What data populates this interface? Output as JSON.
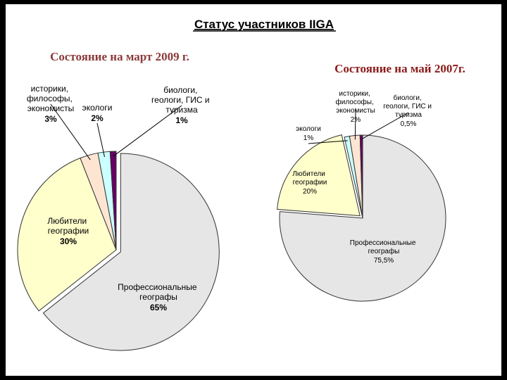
{
  "title": "Статус участников IIGA",
  "chart_data": [
    {
      "type": "pie",
      "title": "Состояние на март 2009 г.",
      "categories": [
        "Профессиональные географы",
        "Любители географии",
        "историки, философы, экономисты",
        "экологи",
        "биологи, геологи, ГИС и туризма"
      ],
      "values": [
        65,
        30,
        3,
        2,
        1
      ],
      "value_labels": [
        "65%",
        "30%",
        "3%",
        "2%",
        "1%"
      ],
      "colors": [
        "#e6e6e6",
        "#ffffcc",
        "#fde5d2",
        "#ccffff",
        "#660066"
      ]
    },
    {
      "type": "pie",
      "title": "Состояние на май 2007г.",
      "categories": [
        "Профессиональные географы",
        "Любители географии",
        "экологи",
        "историки, философы, экономисты",
        "биологи, геологи, ГИС и туризма"
      ],
      "values": [
        75.5,
        20,
        1,
        2,
        0.5
      ],
      "value_labels": [
        "75,5%",
        "20%",
        "1%",
        "2%",
        "0,5%"
      ],
      "colors": [
        "#e6e6e6",
        "#ffffcc",
        "#ccffff",
        "#fde5d2",
        "#660066"
      ]
    }
  ]
}
